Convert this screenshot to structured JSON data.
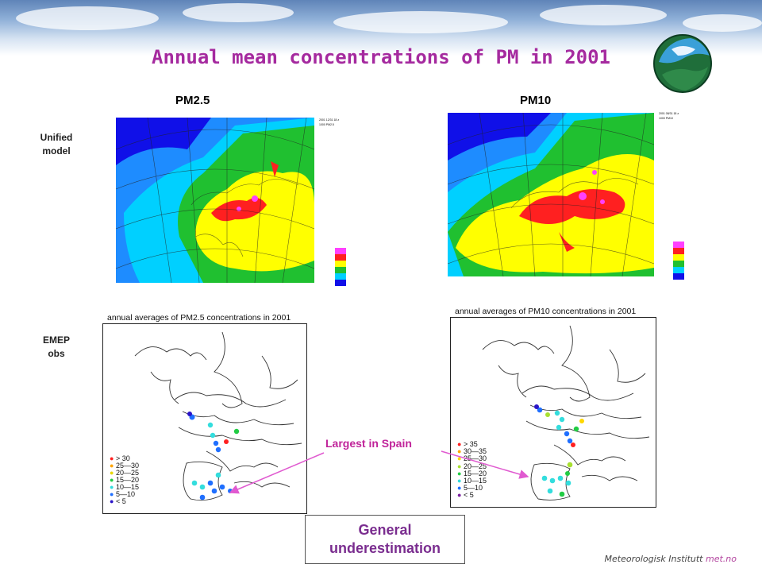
{
  "slide": {
    "title": "Annual mean concentrations of PM in 2001",
    "columns": {
      "left": "PM2.5",
      "right": "PM10"
    },
    "rows": {
      "model": [
        "Unified",
        "model"
      ],
      "obs": [
        "EMEP",
        "obs"
      ]
    },
    "obs_titles": {
      "pm25": "annual averages of PM2.5 concentrations in 2001",
      "pm10": "annual averages of PM10 concentrations in 2001"
    },
    "legends": {
      "pm25": [
        {
          "label": "> 30",
          "color": "#ff2020"
        },
        {
          "label": "25—30",
          "color": "#ffa500"
        },
        {
          "label": "20—25",
          "color": "#ffff30"
        },
        {
          "label": "15—20",
          "color": "#22cc44"
        },
        {
          "label": "10—15",
          "color": "#33dddd"
        },
        {
          "label": "5—10",
          "color": "#1f6fff"
        },
        {
          "label": "< 5",
          "color": "#2a14c8"
        }
      ],
      "pm10": [
        {
          "label": "> 35",
          "color": "#ff2020"
        },
        {
          "label": "30—35",
          "color": "#ffa500"
        },
        {
          "label": "25—30",
          "color": "#ffd700"
        },
        {
          "label": "20—25",
          "color": "#a8e030"
        },
        {
          "label": "15—20",
          "color": "#22cc44"
        },
        {
          "label": "10—15",
          "color": "#33dddd"
        },
        {
          "label": "5—10",
          "color": "#1f6fff"
        },
        {
          "label": "< 5",
          "color": "#7a1fa0"
        }
      ]
    },
    "callout": "Largest in Spain",
    "conclusion": [
      "General",
      "underestimation"
    ],
    "footer": {
      "institute": "Meteorologisk Institutt",
      "site": "met.no"
    },
    "colors": {
      "title": "#a52a9f",
      "callout": "#c0249a",
      "arrow": "#e05ad0",
      "map_deep": "#1010e8",
      "map_ocean": "#1e8cff",
      "map_shelf": "#00d0ff",
      "map_low": "#20c030",
      "map_mid": "#ffff00",
      "map_high": "#ff2020",
      "map_max": "#ff40ff"
    }
  }
}
